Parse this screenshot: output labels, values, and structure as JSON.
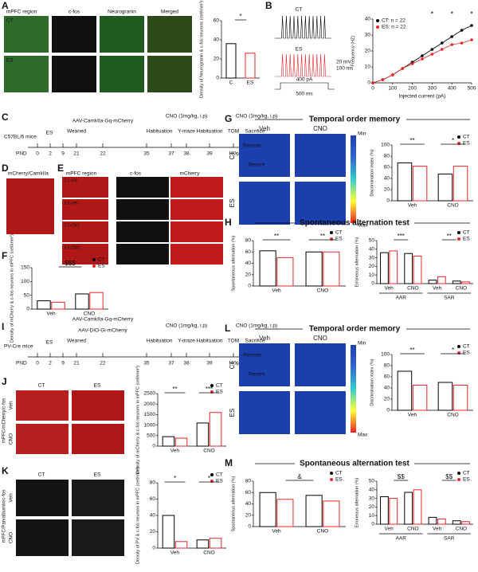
{
  "A": {
    "label": "A",
    "region": "mPFC region",
    "cols": [
      "c-fos",
      "Neurogranin",
      "Merged"
    ],
    "rows": [
      "CT",
      "ES"
    ],
    "chart": {
      "type": "bar",
      "categories": [
        "C",
        "ES"
      ],
      "values": [
        36,
        26
      ],
      "colors": [
        "#000000",
        "#e8262a"
      ],
      "ylim": [
        0,
        60
      ],
      "yticks": [
        0,
        20,
        40,
        60
      ],
      "ylabel": "Density of Neurogranin & c-fos neurons (cell/mm²)",
      "annotations": [
        "*"
      ]
    }
  },
  "B": {
    "label": "B",
    "traces": [
      "CT",
      "ES"
    ],
    "scale": [
      "20 mV",
      "100 ms"
    ],
    "stim": [
      "400 pA",
      "500 ms"
    ],
    "chart": {
      "type": "line",
      "x": [
        0,
        50,
        100,
        150,
        200,
        250,
        300,
        350,
        400,
        450,
        500
      ],
      "xlim": [
        0,
        500
      ],
      "xticks": [
        0,
        100,
        200,
        300,
        400,
        500
      ],
      "ylim": [
        0,
        40
      ],
      "yticks": [
        0,
        10,
        20,
        30,
        40
      ],
      "xlabel": "Injected current (pA)",
      "ylabel": "Frequency (HZ)",
      "annotations": [
        "*",
        "*",
        "*"
      ],
      "series": [
        {
          "name": "CT: n = 22",
          "color": "#000000",
          "values": [
            0,
            2,
            5,
            9,
            13,
            17,
            21,
            25,
            29,
            33,
            36
          ]
        },
        {
          "name": "ES: n = 22",
          "color": "#e8262a",
          "values": [
            0,
            2,
            5,
            9,
            12,
            15,
            18,
            21,
            24,
            25,
            27
          ]
        }
      ]
    }
  },
  "C": {
    "label": "C",
    "pnd": "PND",
    "days": [
      0,
      2,
      9,
      21,
      22,
      35,
      37,
      38,
      39,
      40,
      40
    ],
    "events": [
      "C57BL/6 mice",
      "ES",
      "Weaned",
      "AAV-CamkIIa-Gq-mCherry",
      "Habituation",
      "CNO (1mg/kg, i.p)",
      "Y-maze",
      "Habituation",
      "TOM",
      "CNO (1mg/kg, i.p)",
      "Sacrifice",
      "90min"
    ]
  },
  "D": {
    "label": "D",
    "title": "mCherry/CamkIIa"
  },
  "E": {
    "label": "E",
    "cols": [
      "mPFC region",
      "c-fos",
      "mCherry"
    ],
    "rows": [
      "CT-Veh",
      "ES-Veh",
      "CT-CNO",
      "ES-CNO"
    ]
  },
  "F": {
    "label": "F",
    "chart": {
      "type": "grouped_bar",
      "groups": [
        "Veh",
        "CNO"
      ],
      "ylim": [
        0,
        150
      ],
      "yticks": [
        0,
        50,
        100,
        150
      ],
      "ylabel": "Density of mCherry & c-fos neurons in mPFC (cell/mm²)",
      "annotations": [
        "$$$"
      ],
      "series": [
        {
          "name": "CT",
          "color": "#000000",
          "values": [
            30,
            55
          ]
        },
        {
          "name": "ES",
          "color": "#e8262a",
          "values": [
            25,
            60
          ]
        }
      ]
    }
  },
  "G": {
    "label": "G",
    "title": "Temporal order memory",
    "cols": [
      "Veh",
      "CNO"
    ],
    "rows": [
      "CT",
      "ES"
    ],
    "objects": [
      "Remote",
      "Recent"
    ],
    "scale": [
      "Min",
      "Max"
    ],
    "chart": {
      "type": "grouped_bar",
      "groups": [
        "Veh",
        "CNO"
      ],
      "ylim": [
        0,
        100
      ],
      "yticks": [
        0,
        20,
        40,
        60,
        80,
        100
      ],
      "ylabel": "Discrimination index (%)",
      "annotations": [
        "**",
        "*"
      ],
      "series": [
        {
          "name": "CT",
          "color": "#000000",
          "values": [
            68,
            48
          ]
        },
        {
          "name": "ES",
          "color": "#e8262a",
          "values": [
            62,
            62
          ]
        }
      ]
    }
  },
  "H": {
    "label": "H",
    "title": "Spontaneous alternation test",
    "charts": [
      {
        "type": "grouped_bar",
        "groups": [
          "Veh",
          "CNO"
        ],
        "ylim": [
          0,
          80
        ],
        "yticks": [
          0,
          20,
          40,
          60,
          80
        ],
        "ylabel": "Spontaneous alternation (%)",
        "annotations": [
          "**",
          "**"
        ],
        "series": [
          {
            "name": "CT",
            "color": "#000000",
            "values": [
              62,
              60
            ]
          },
          {
            "name": "ES",
            "color": "#e8262a",
            "values": [
              50,
              60
            ]
          }
        ]
      },
      {
        "type": "grouped_bar",
        "groups": [
          "Veh",
          "CNO",
          "Veh",
          "CNO"
        ],
        "supergroups": [
          "AAR",
          "SAR"
        ],
        "ylim": [
          0,
          50
        ],
        "yticks": [
          0,
          10,
          20,
          30,
          40,
          50
        ],
        "ylabel": "Erroneous alternation (%)",
        "annotations": [
          "***",
          "**"
        ],
        "series": [
          {
            "name": "CT",
            "color": "#000000",
            "values": [
              36,
              35,
              4,
              3
            ]
          },
          {
            "name": "ES",
            "color": "#e8262a",
            "values": [
              38,
              32,
              8,
              2
            ]
          }
        ]
      }
    ]
  },
  "I": {
    "label": "I",
    "pnd": "PND",
    "days": [
      0,
      2,
      9,
      21,
      22,
      35,
      37,
      38,
      39,
      40,
      40
    ],
    "events": [
      "PV-Cre mice",
      "ES",
      "Weaned",
      "AAV-CamkIIa-Gq-mCherry",
      "AAV-DIO-Gi-mCherry",
      "Habituation",
      "CNO (1mg/kg, i.p)",
      "Y-maze",
      "Habituation",
      "TOM",
      "CNO (1mg/kg, i.p)",
      "Sacrifice",
      "90min"
    ]
  },
  "J": {
    "label": "J",
    "cols": [
      "CT",
      "ES"
    ],
    "rows": [
      "Veh",
      "CNO"
    ],
    "stain": "mPFC/mCherry/c-fos",
    "chart": {
      "type": "grouped_bar",
      "groups": [
        "Veh",
        "CNO"
      ],
      "ylim": [
        0,
        2500
      ],
      "yticks": [
        0,
        500,
        1000,
        1500,
        2000,
        2500
      ],
      "ylabel": "Density of mCherry & c-fos neurons in mPFC (cell/mm²)",
      "annotations": [
        "**",
        "***"
      ],
      "series": [
        {
          "name": "CT",
          "color": "#000000",
          "values": [
            450,
            1100
          ]
        },
        {
          "name": "ES",
          "color": "#e8262a",
          "values": [
            380,
            1600
          ]
        }
      ]
    }
  },
  "K": {
    "label": "K",
    "cols": [
      "CT",
      "ES"
    ],
    "rows": [
      "Veh",
      "CNO"
    ],
    "stain": "mPFC/Parvalbumin/c-fos",
    "chart": {
      "type": "grouped_bar",
      "groups": [
        "Veh",
        "CNO"
      ],
      "ylim": [
        0,
        80
      ],
      "yticks": [
        0,
        20,
        40,
        60,
        80
      ],
      "ylabel": "Density of PV & c-fos neurons in mPFC (cell/mm²)",
      "annotations": [
        "*",
        "*"
      ],
      "series": [
        {
          "name": "CT",
          "color": "#000000",
          "values": [
            40,
            10
          ]
        },
        {
          "name": "ES",
          "color": "#e8262a",
          "values": [
            8,
            12
          ]
        }
      ]
    }
  },
  "L": {
    "label": "L",
    "title": "Temporal order memory",
    "cols": [
      "Veh",
      "CNO"
    ],
    "rows": [
      "CT",
      "ES"
    ],
    "objects": [
      "Remote",
      "Recent"
    ],
    "scale": [
      "Min",
      "Max"
    ],
    "chart": {
      "type": "grouped_bar",
      "groups": [
        "Veh",
        "CNO"
      ],
      "ylim": [
        0,
        100
      ],
      "yticks": [
        0,
        20,
        40,
        60,
        80,
        100
      ],
      "ylabel": "Discrimination index (%)",
      "annotations": [
        "**",
        "*"
      ],
      "series": [
        {
          "name": "CT",
          "color": "#000000",
          "values": [
            70,
            50
          ]
        },
        {
          "name": "ES",
          "color": "#e8262a",
          "values": [
            45,
            45
          ]
        }
      ]
    }
  },
  "M": {
    "label": "M",
    "title": "Spontaneous alternation test",
    "charts": [
      {
        "type": "grouped_bar",
        "groups": [
          "Veh",
          "CNO"
        ],
        "ylim": [
          0,
          80
        ],
        "yticks": [
          0,
          20,
          40,
          60,
          80
        ],
        "ylabel": "Spontaneous alternation (%)",
        "annotations": [
          "&"
        ],
        "series": [
          {
            "name": "CT",
            "color": "#000000",
            "values": [
              60,
              55
            ]
          },
          {
            "name": "ES",
            "color": "#e8262a",
            "values": [
              48,
              45
            ]
          }
        ]
      },
      {
        "type": "grouped_bar",
        "groups": [
          "Veh",
          "CNO",
          "Veh",
          "CNO"
        ],
        "supergroups": [
          "AAR",
          "SAR"
        ],
        "ylim": [
          0,
          50
        ],
        "yticks": [
          0,
          10,
          20,
          30,
          40,
          50
        ],
        "ylabel": "Erroneous alternation (%)",
        "annotations": [
          "$$",
          "$$"
        ],
        "series": [
          {
            "name": "CT",
            "color": "#000000",
            "values": [
              32,
              37,
              8,
              4
            ]
          },
          {
            "name": "ES",
            "color": "#e8262a",
            "values": [
              30,
              40,
              6,
              3
            ]
          }
        ]
      }
    ]
  }
}
